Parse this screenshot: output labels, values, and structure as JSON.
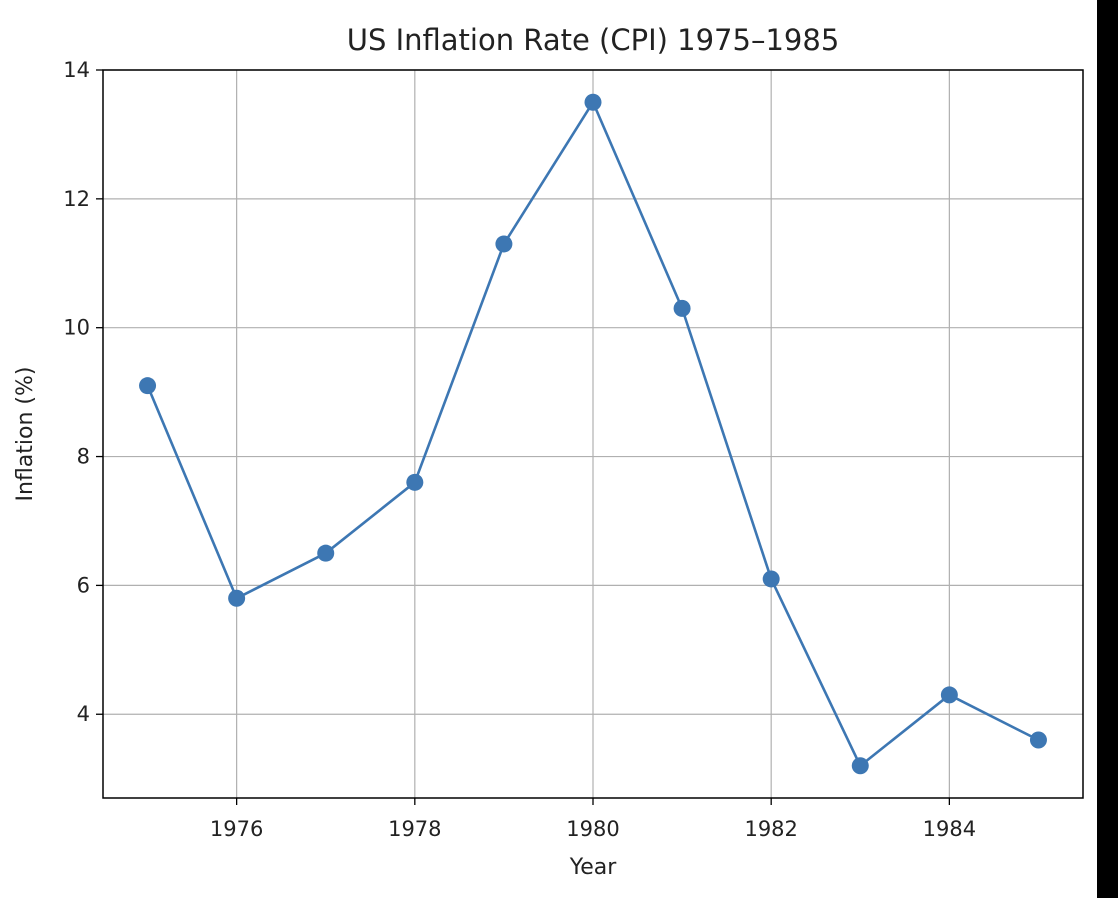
{
  "chart_data": {
    "type": "line",
    "title": "US Inflation Rate (CPI) 1975–1985",
    "xlabel": "Year",
    "ylabel": "Inflation (%)",
    "x": [
      1975,
      1976,
      1977,
      1978,
      1979,
      1980,
      1981,
      1982,
      1983,
      1984,
      1985
    ],
    "series": [
      {
        "name": "Inflation (%)",
        "values": [
          9.1,
          5.8,
          6.5,
          7.6,
          11.3,
          13.5,
          10.3,
          6.1,
          3.2,
          4.3,
          3.6
        ],
        "color": "#3d77b3",
        "marker": "circle"
      }
    ],
    "xlim": [
      1974.5,
      1985.5
    ],
    "ylim": [
      2.7,
      14.0
    ],
    "xticks": [
      "1976",
      "1978",
      "1980",
      "1982",
      "1984"
    ],
    "yticks": [
      "4",
      "6",
      "8",
      "10",
      "12",
      "14"
    ],
    "grid": true,
    "legend": "none"
  },
  "colors": {
    "line": "#3d77b3",
    "grid": "#b0b0b0",
    "background": "#ffffff",
    "frame": "#000000"
  }
}
